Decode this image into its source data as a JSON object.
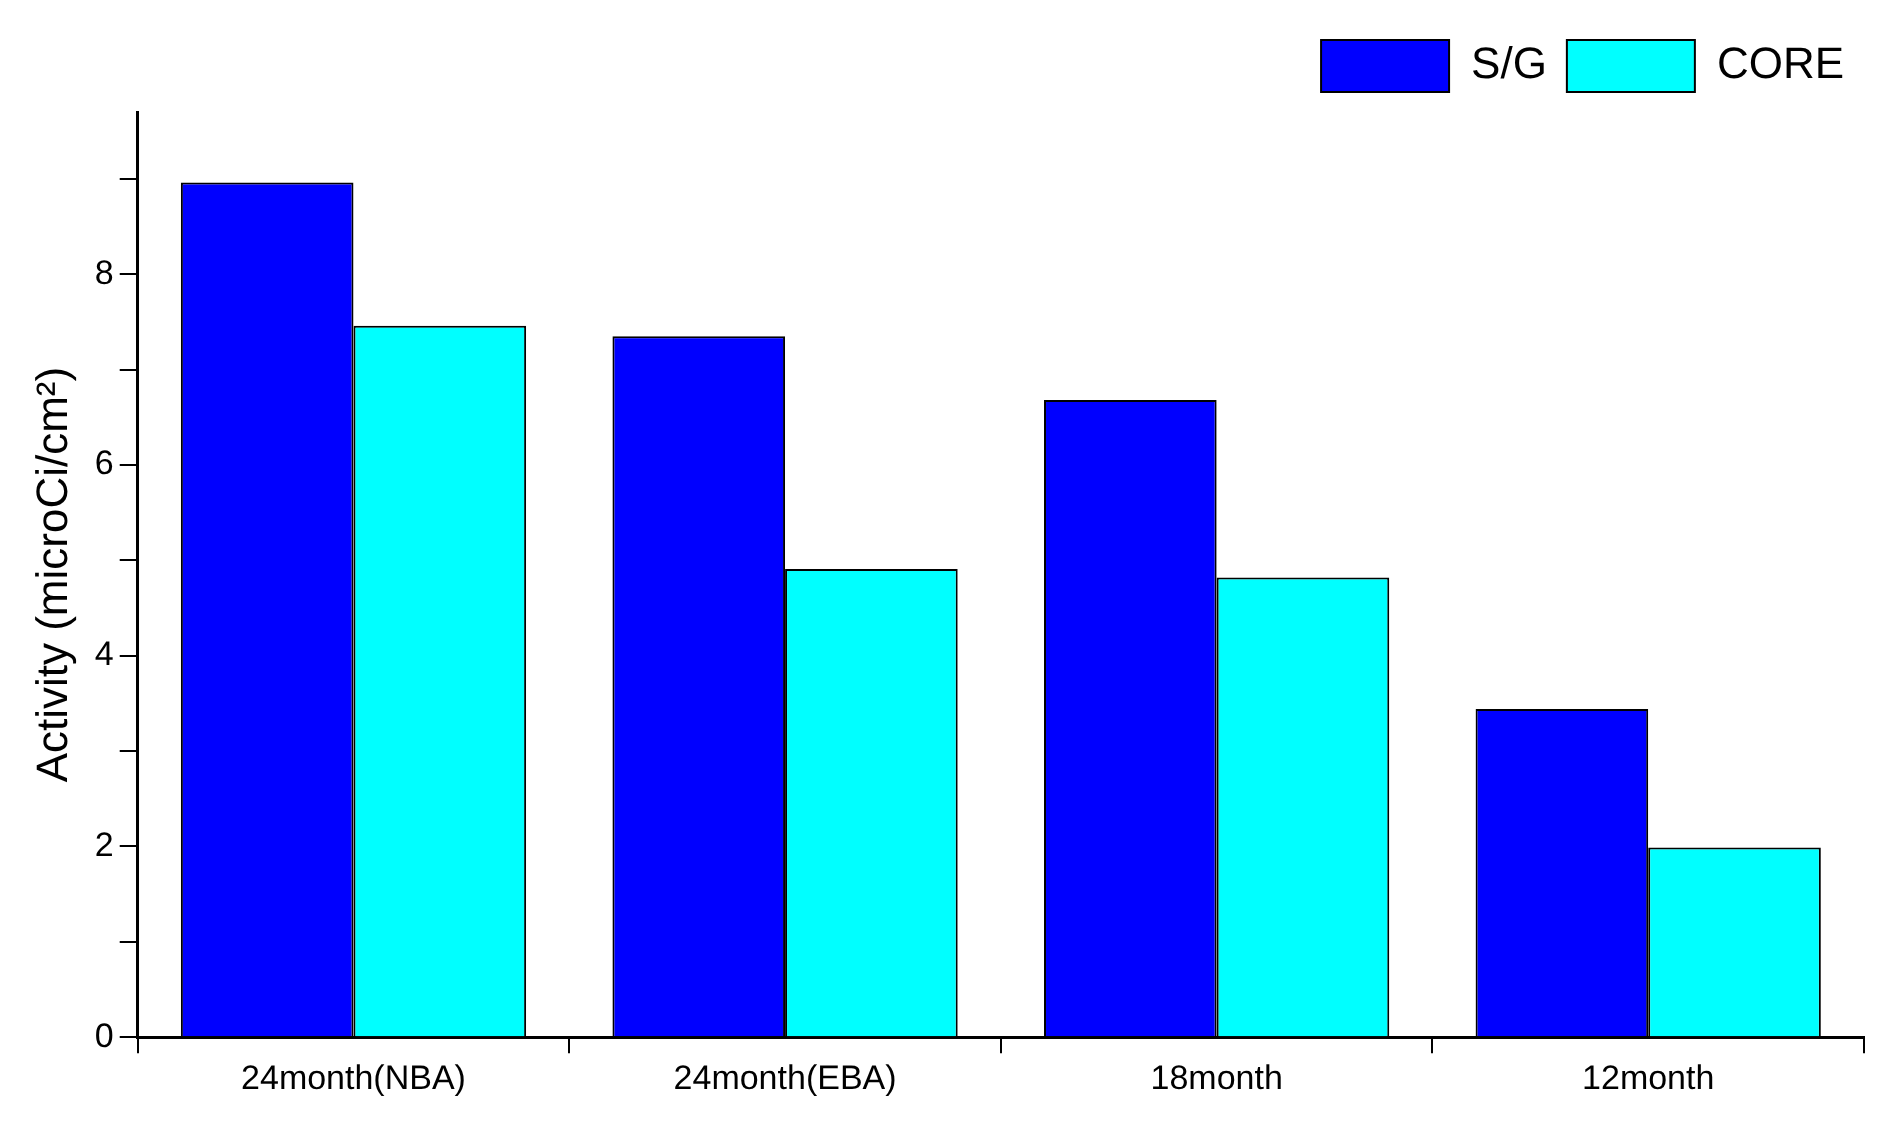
{
  "chart_data": {
    "type": "bar",
    "ylabel": "Activity (microCi/cm²)",
    "categories": [
      "24month(NBA)",
      "24month(EBA)",
      "18month",
      "12month"
    ],
    "series": [
      {
        "name": "S/G",
        "color": "#0000ff",
        "values": [
          8.96,
          7.35,
          6.68,
          3.44
        ]
      },
      {
        "name": "CORE",
        "color": "#00ffff",
        "values": [
          7.46,
          4.91,
          4.82,
          1.99
        ]
      }
    ],
    "ylim": [
      0,
      9.7
    ],
    "yticks": [
      0,
      {
        "value": 1,
        "label": null
      },
      2,
      {
        "value": 3,
        "label": null
      },
      4,
      {
        "value": 5,
        "label": null
      },
      6,
      {
        "value": 7,
        "label": null
      },
      8,
      {
        "value": 9,
        "label": null
      }
    ],
    "grid": false,
    "legend": "top right"
  }
}
